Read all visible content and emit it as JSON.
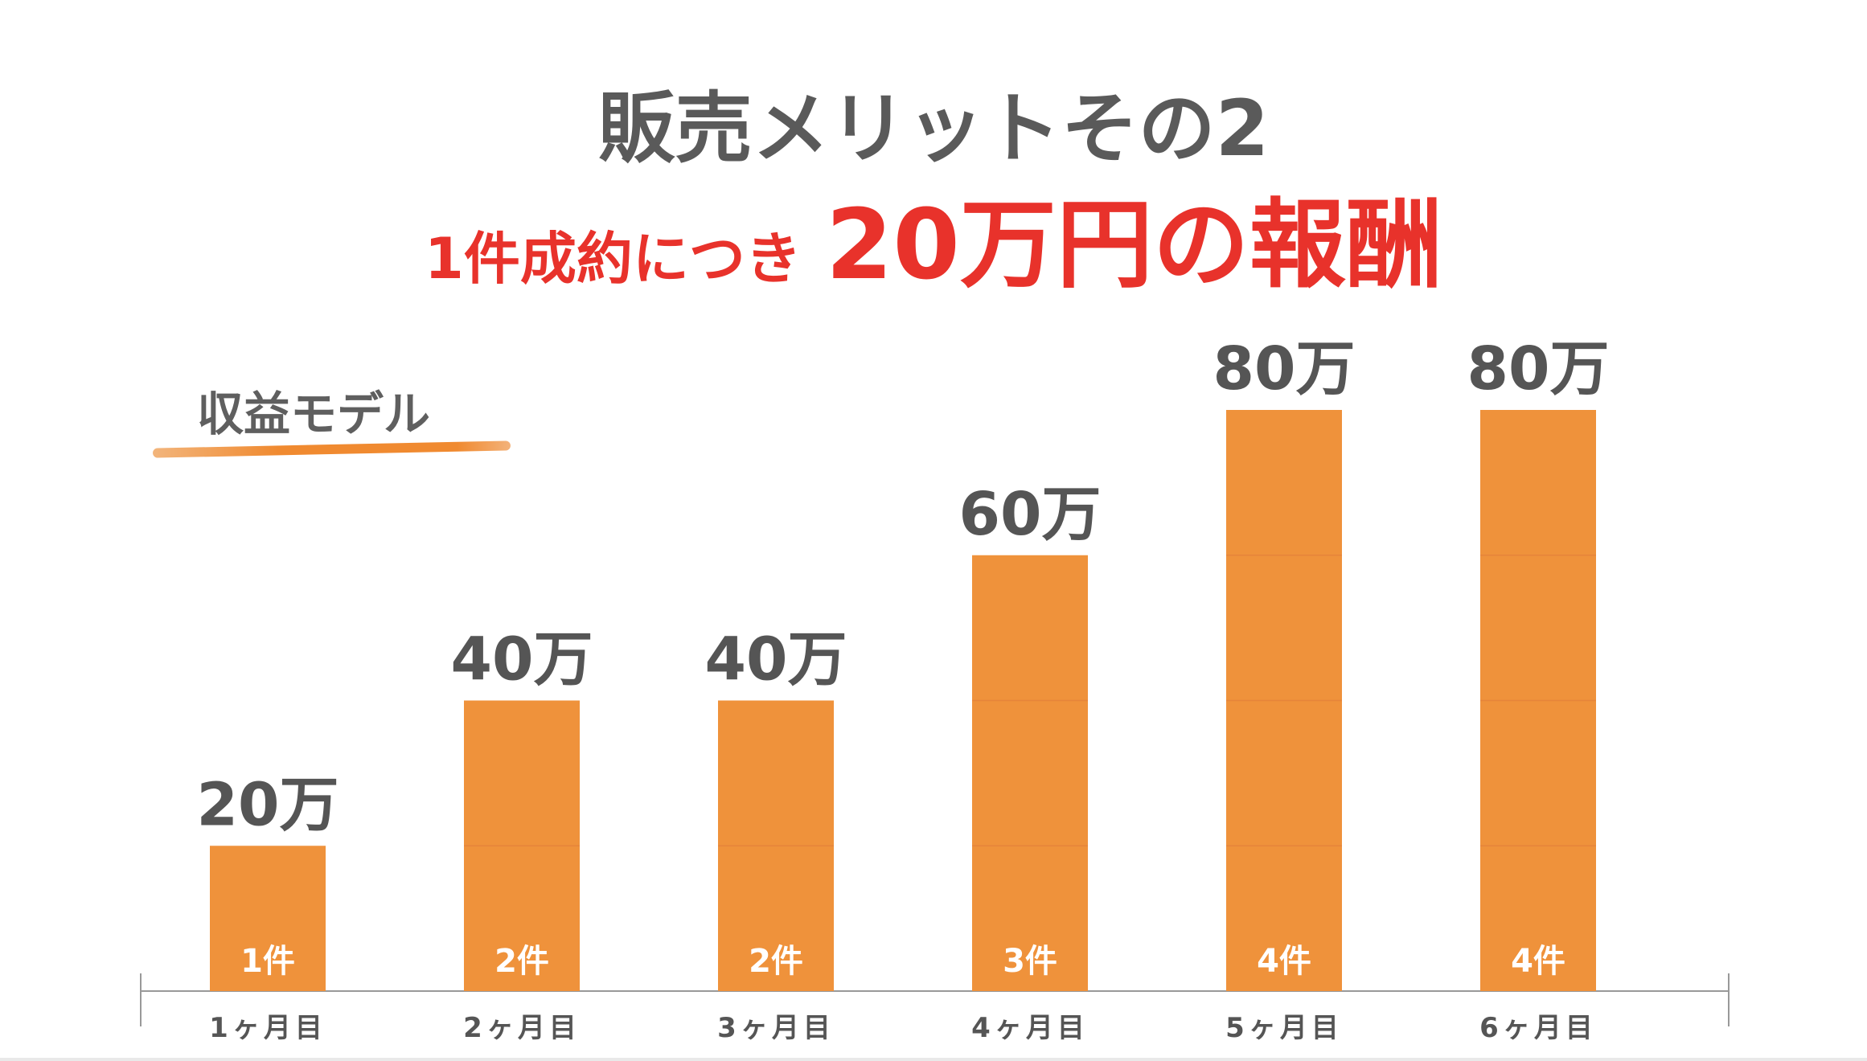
{
  "header": {
    "title": "販売メリットその2",
    "subtitle_small": "1件成約につき",
    "subtitle_big": "20万円の報酬"
  },
  "model_label": "収益モデル",
  "colors": {
    "bar": "#ef923b",
    "title": "#5a5a5a",
    "accent": "#e8322b",
    "value_label": "#555555",
    "axis": "#999999"
  },
  "chart_data": {
    "type": "bar",
    "categories": [
      "1ヶ月目",
      "2ヶ月目",
      "3ヶ月目",
      "4ヶ月目",
      "5ヶ月目",
      "6ヶ月目"
    ],
    "values": [
      20,
      40,
      40,
      60,
      80,
      80
    ],
    "value_labels": [
      "20万",
      "40万",
      "40万",
      "60万",
      "80万",
      "80万"
    ],
    "counts": [
      1,
      2,
      2,
      3,
      4,
      4
    ],
    "count_labels": [
      "1件",
      "2件",
      "2件",
      "3件",
      "4件",
      "4件"
    ],
    "unit": "万",
    "ylim": [
      0,
      80
    ],
    "grid": false,
    "legend": "none"
  }
}
